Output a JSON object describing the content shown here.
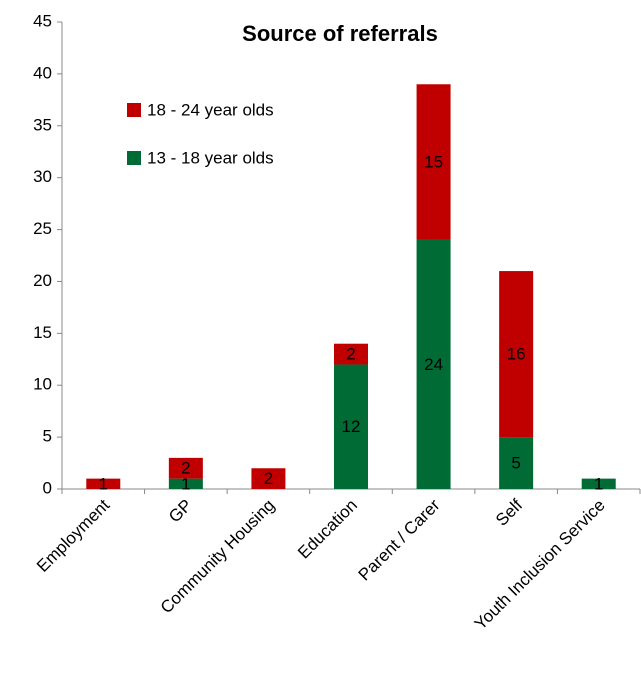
{
  "chart_data": {
    "type": "stacked_bar",
    "title": "Source of referrals",
    "categories": [
      "Employment",
      "GP",
      "Community Housing",
      "Education",
      "Parent / Carer",
      "Self",
      "Youth Inclusion Service"
    ],
    "series": [
      {
        "name": "13 - 18 year olds",
        "color": "#006b35",
        "values": [
          0,
          1,
          0,
          12,
          24,
          5,
          1
        ]
      },
      {
        "name": "18 - 24 year olds",
        "color": "#c00000",
        "values": [
          1,
          2,
          2,
          2,
          15,
          16,
          0
        ]
      }
    ],
    "ylim": [
      0,
      45
    ],
    "yticks": [
      0,
      5,
      10,
      15,
      20,
      25,
      30,
      35,
      40,
      45
    ],
    "grid": false
  }
}
